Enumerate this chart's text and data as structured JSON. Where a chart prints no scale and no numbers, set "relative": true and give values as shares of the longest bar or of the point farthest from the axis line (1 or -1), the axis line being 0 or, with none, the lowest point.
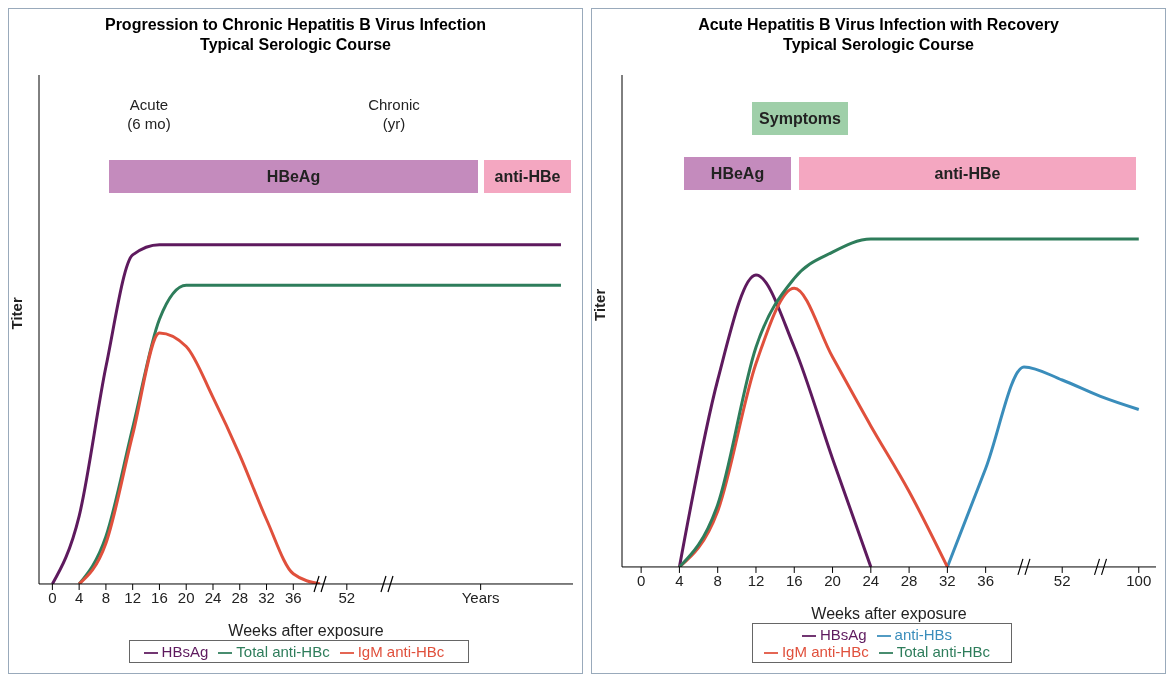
{
  "chart_data": [
    {
      "type": "line",
      "title": "Progression to Chronic Hepatitis B Virus Infection",
      "subtitle": "Typical Serologic Course",
      "xlabel": "Weeks after exposure",
      "ylabel": "Titer",
      "relative": true,
      "marker": "none",
      "legend": "bottom",
      "categories": [
        "0",
        "4",
        "8",
        "12",
        "16",
        "20",
        "24",
        "28",
        "32",
        "36",
        null,
        "52",
        null,
        null,
        null,
        null,
        "Years",
        null,
        null,
        null
      ],
      "series": [
        {
          "name": "HBsAg",
          "color": "#5e1a5e",
          "values": [
            0,
            0.2,
            0.64,
            0.97,
            1,
            1,
            1,
            1,
            1,
            1,
            1,
            1,
            1,
            1,
            1,
            1,
            1,
            1,
            1,
            1
          ]
        },
        {
          "name": "Total anti-HBc",
          "color": "#2e7d5b",
          "values": [
            null,
            0,
            0.14,
            0.46,
            0.78,
            0.88,
            0.88,
            0.88,
            0.88,
            0.88,
            0.88,
            0.88,
            0.88,
            0.88,
            0.88,
            0.88,
            0.88,
            0.88,
            0.88,
            0.88
          ]
        },
        {
          "name": "IgM anti-HBc",
          "color": "#e0503c",
          "values": [
            null,
            0,
            0.12,
            0.44,
            0.74,
            0.7,
            0.55,
            0.38,
            0.19,
            0.03,
            0,
            null,
            null,
            null,
            null,
            null,
            null,
            null,
            null,
            null
          ]
        }
      ],
      "annotations": [
        "Acute\n(6 mo)",
        "Chronic\n(yr)",
        "HBeAg",
        "anti-HBe"
      ]
    },
    {
      "type": "line",
      "title": "Acute Hepatitis B Virus Infection with Recovery",
      "subtitle": "Typical Serologic Course",
      "xlabel": "Weeks after exposure",
      "ylabel": "Titer",
      "relative": true,
      "marker": "none",
      "legend": "bottom",
      "categories": [
        "0",
        "4",
        "8",
        "12",
        "16",
        "20",
        "24",
        "28",
        "32",
        "36",
        null,
        "52",
        null,
        "100"
      ],
      "series": [
        {
          "name": "HBsAg",
          "color": "#5e1a5e",
          "values": [
            null,
            0,
            0.57,
            0.89,
            0.67,
            0.33,
            0,
            null,
            null,
            null,
            null,
            null,
            null,
            null
          ]
        },
        {
          "name": "anti-HBs",
          "color": "#3a8dbb",
          "values": [
            null,
            null,
            null,
            null,
            null,
            null,
            null,
            null,
            0,
            0.3,
            0.61,
            0.57,
            0.52,
            0.48
          ]
        },
        {
          "name": "IgM anti-HBc",
          "color": "#e0503c",
          "values": [
            null,
            0,
            0.17,
            0.62,
            0.85,
            0.64,
            0.43,
            0.23,
            0,
            null,
            null,
            null,
            null,
            null
          ]
        },
        {
          "name": "Total anti-HBc",
          "color": "#2e7d5b",
          "values": [
            null,
            0,
            0.19,
            0.67,
            0.88,
            0.96,
            1,
            1,
            1,
            1,
            1,
            1,
            1,
            1
          ]
        }
      ],
      "annotations": [
        "Symptoms",
        "HBeAg",
        "anti-HBe"
      ]
    }
  ]
}
